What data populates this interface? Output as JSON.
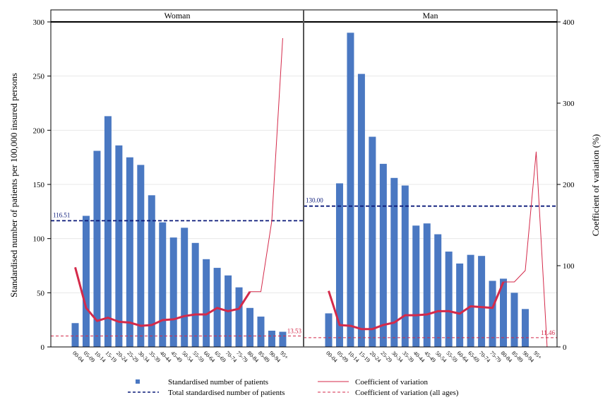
{
  "chart_data": {
    "type": "bar",
    "y_left_label": "Standardised number of patients per 100,000 insured persons",
    "y_right_label": "Coefficient of variation (%)",
    "y_left_range": [
      0,
      300
    ],
    "y_left_ticks": [
      "0",
      "50",
      "100",
      "150",
      "200",
      "250",
      "300"
    ],
    "y_right_range": [
      0,
      400
    ],
    "y_right_ticks": [
      "0",
      "100",
      "200",
      "300",
      "400"
    ],
    "categories": [
      "00-04",
      "05-09",
      "10-14",
      "15-19",
      "20-24",
      "25-29",
      "30-34",
      "35-39",
      "40-44",
      "45-49",
      "50-54",
      "55-59",
      "60-64",
      "65-69",
      "70-74",
      "75-79",
      "80-84",
      "85-89",
      "90-94",
      "95+"
    ],
    "panels": [
      {
        "name": "Woman",
        "bars": [
          22,
          121,
          181,
          213,
          186,
          175,
          168,
          140,
          115,
          101,
          110,
          96,
          81,
          73,
          66,
          55,
          36,
          28,
          15,
          14
        ],
        "cv_thick": [
          98,
          48,
          32,
          36,
          31,
          30,
          26,
          27,
          33,
          34,
          38,
          40,
          40,
          48,
          44,
          47,
          68
        ],
        "cv_thin": [
          68,
          155,
          380
        ],
        "total": 116.51,
        "total_label": "116.51",
        "cv_all": 13.53,
        "cv_all_label": "13.53"
      },
      {
        "name": "Man",
        "bars": [
          31,
          151,
          290,
          252,
          194,
          169,
          156,
          149,
          112,
          114,
          104,
          88,
          77,
          85,
          84,
          61,
          63,
          50,
          35,
          0
        ],
        "cv_thick": [
          69,
          27,
          26,
          22,
          22,
          27,
          30,
          39,
          39,
          40,
          44,
          44,
          41,
          50,
          49,
          48,
          80
        ],
        "cv_thin": [
          80,
          94,
          240,
          0
        ],
        "total": 130.0,
        "total_label": "130.00",
        "cv_all": 11.46,
        "cv_all_label": "11.46"
      }
    ],
    "legend": [
      {
        "label": "Standardised number of patients",
        "symbol": "bar"
      },
      {
        "label": "Coefficient of variation",
        "symbol": "line"
      },
      {
        "label": "Total standardised number of patients",
        "symbol": "dash-navy"
      },
      {
        "label": "Coefficient of variation (all ages)",
        "symbol": "dash-red"
      }
    ],
    "colors": {
      "bar": "#4a78c2",
      "cv_line": "#d42a4a",
      "total_line": "#0b1a7a",
      "cv_all_line": "#d42a4a"
    }
  }
}
